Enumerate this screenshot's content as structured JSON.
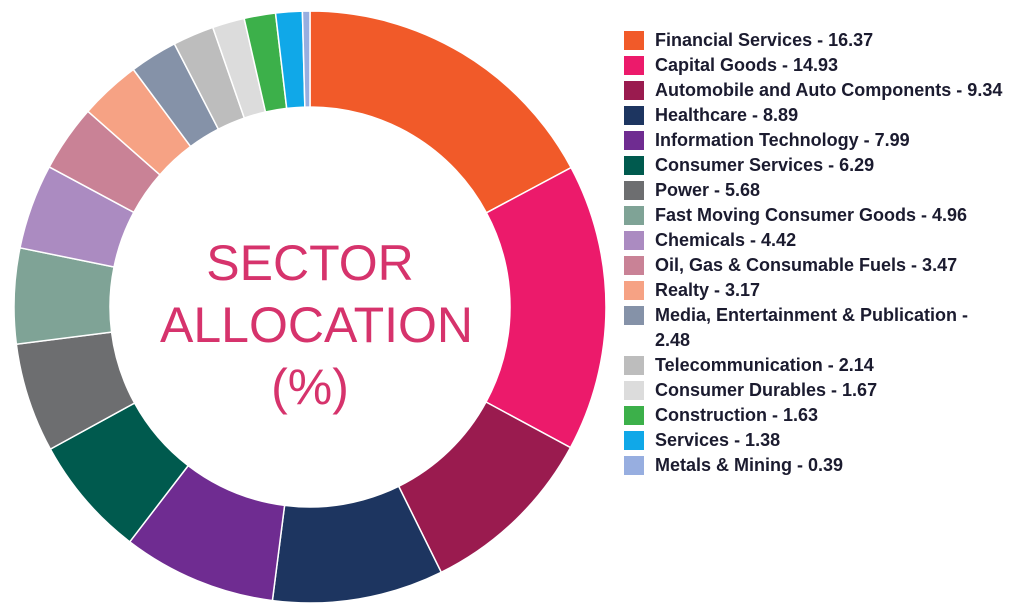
{
  "chart_data": {
    "type": "pie",
    "title_lines": [
      "SECTOR",
      "ALLOCATION",
      "(%)"
    ],
    "slices": [
      {
        "label": "Financial Services - 16.37",
        "name": "Financial Services",
        "value": 16.37,
        "color": "#f15a29"
      },
      {
        "label": "Capital Goods - 14.93",
        "name": "Capital Goods",
        "value": 14.93,
        "color": "#ec1a6b"
      },
      {
        "label": "Automobile and Auto Components - 9.34",
        "name": "Automobile and Auto Components",
        "value": 9.34,
        "color": "#9a1b4f"
      },
      {
        "label": "Healthcare - 8.89",
        "name": "Healthcare",
        "value": 8.89,
        "color": "#1d3560"
      },
      {
        "label": "Information Technology - 7.99",
        "name": "Information Technology",
        "value": 7.99,
        "color": "#6f2c91"
      },
      {
        "label": "Consumer Services - 6.29",
        "name": "Consumer Services",
        "value": 6.29,
        "color": "#005a4e"
      },
      {
        "label": "Power - 5.68",
        "name": "Power",
        "value": 5.68,
        "color": "#6d6e70"
      },
      {
        "label": "Fast Moving Consumer Goods - 4.96",
        "name": "Fast Moving Consumer Goods",
        "value": 4.96,
        "color": "#7fa396"
      },
      {
        "label": "Chemicals - 4.42",
        "name": "Chemicals",
        "value": 4.42,
        "color": "#ab8bc1"
      },
      {
        "label": "Oil, Gas & Consumable Fuels - 3.47",
        "name": "Oil, Gas & Consumable Fuels",
        "value": 3.47,
        "color": "#c98296"
      },
      {
        "label": "Realty - 3.17",
        "name": "Realty",
        "value": 3.17,
        "color": "#f6a284"
      },
      {
        "label": "Media, Entertainment & Publication - 2.48",
        "name": "Media, Entertainment & Publication",
        "value": 2.48,
        "color": "#8592a8"
      },
      {
        "label": "Telecommunication - 2.14",
        "name": "Telecommunication",
        "value": 2.14,
        "color": "#bdbdbd"
      },
      {
        "label": "Consumer Durables - 1.67",
        "name": "Consumer Durables",
        "value": 1.67,
        "color": "#dcdcdc"
      },
      {
        "label": "Construction - 1.63",
        "name": "Construction",
        "value": 1.63,
        "color": "#3cb04a"
      },
      {
        "label": "Services - 1.38",
        "name": "Services",
        "value": 1.38,
        "color": "#10a8e8"
      },
      {
        "label": "Metals & Mining - 0.39",
        "name": "Metals & Mining",
        "value": 0.39,
        "color": "#97aee0"
      }
    ],
    "legend_position": "right",
    "accent_color": "#d6336c"
  }
}
